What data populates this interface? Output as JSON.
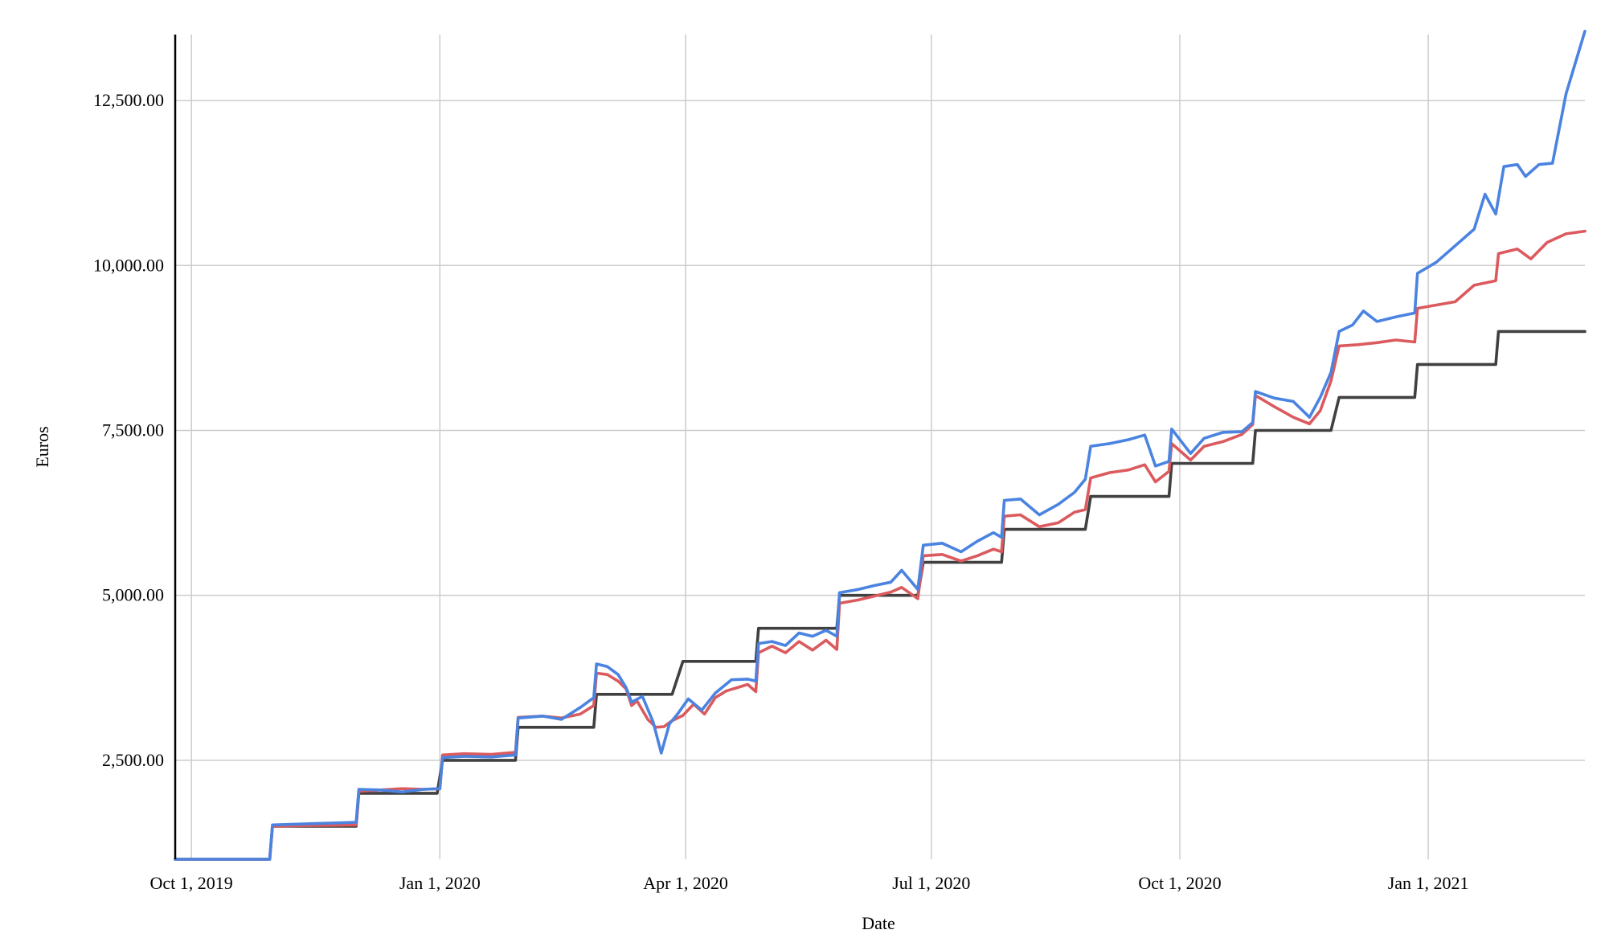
{
  "chart_data": {
    "type": "line",
    "title": "",
    "xlabel": "Date",
    "ylabel": "Euros",
    "xlim": [
      "2019-09-25",
      "2021-02-28"
    ],
    "ylim": [
      1000,
      13500
    ],
    "y_ticks": [
      {
        "value": 2500,
        "label": "2,500.00"
      },
      {
        "value": 5000,
        "label": "5,000.00"
      },
      {
        "value": 7500,
        "label": "7,500.00"
      },
      {
        "value": 10000,
        "label": "10,000.00"
      },
      {
        "value": 12500,
        "label": "12,500.00"
      }
    ],
    "x_ticks": [
      {
        "date": "2019-10-01",
        "label": "Oct 1, 2019"
      },
      {
        "date": "2020-01-01",
        "label": "Jan 1, 2020"
      },
      {
        "date": "2020-04-01",
        "label": "Apr 1, 2020"
      },
      {
        "date": "2020-07-01",
        "label": "Jul 1, 2020"
      },
      {
        "date": "2020-10-01",
        "label": "Oct 1, 2020"
      },
      {
        "date": "2021-01-01",
        "label": "Jan 1, 2021"
      }
    ],
    "grid": true,
    "legend": "none",
    "series": [
      {
        "color": "#404040",
        "points": [
          [
            "2019-09-25",
            1000
          ],
          [
            "2019-10-30",
            1000
          ],
          [
            "2019-10-31",
            1500
          ],
          [
            "2019-12-01",
            1500
          ],
          [
            "2019-12-02",
            2000
          ],
          [
            "2019-12-31",
            2000
          ],
          [
            "2020-01-02",
            2500
          ],
          [
            "2020-01-29",
            2500
          ],
          [
            "2020-01-30",
            3000
          ],
          [
            "2020-02-27",
            3000
          ],
          [
            "2020-02-28",
            3500
          ],
          [
            "2020-03-27",
            3500
          ],
          [
            "2020-03-31",
            4000
          ],
          [
            "2020-04-27",
            4000
          ],
          [
            "2020-04-28",
            4500
          ],
          [
            "2020-05-27",
            4500
          ],
          [
            "2020-05-28",
            5000
          ],
          [
            "2020-06-26",
            5000
          ],
          [
            "2020-06-28",
            5500
          ],
          [
            "2020-07-27",
            5500
          ],
          [
            "2020-07-28",
            6000
          ],
          [
            "2020-08-27",
            6000
          ],
          [
            "2020-08-29",
            6500
          ],
          [
            "2020-09-27",
            6500
          ],
          [
            "2020-09-28",
            7000
          ],
          [
            "2020-10-28",
            7000
          ],
          [
            "2020-10-29",
            7500
          ],
          [
            "2020-11-26",
            7500
          ],
          [
            "2020-11-29",
            8000
          ],
          [
            "2020-12-27",
            8000
          ],
          [
            "2020-12-28",
            8500
          ],
          [
            "2021-01-26",
            8500
          ],
          [
            "2021-01-27",
            9000
          ],
          [
            "2021-02-28",
            9000
          ]
        ]
      },
      {
        "color": "#db5a5e",
        "points": [
          [
            "2019-09-25",
            1000
          ],
          [
            "2019-10-30",
            1000
          ],
          [
            "2019-10-31",
            1500
          ],
          [
            "2019-11-15",
            1510
          ],
          [
            "2019-12-01",
            1520
          ],
          [
            "2019-12-02",
            2030
          ],
          [
            "2019-12-10",
            2050
          ],
          [
            "2019-12-18",
            2070
          ],
          [
            "2019-12-26",
            2060
          ],
          [
            "2020-01-01",
            2070
          ],
          [
            "2020-01-02",
            2580
          ],
          [
            "2020-01-10",
            2600
          ],
          [
            "2020-01-20",
            2590
          ],
          [
            "2020-01-29",
            2620
          ],
          [
            "2020-01-30",
            3150
          ],
          [
            "2020-02-08",
            3170
          ],
          [
            "2020-02-15",
            3140
          ],
          [
            "2020-02-22",
            3200
          ],
          [
            "2020-02-27",
            3330
          ],
          [
            "2020-02-28",
            3820
          ],
          [
            "2020-03-03",
            3800
          ],
          [
            "2020-03-07",
            3700
          ],
          [
            "2020-03-10",
            3580
          ],
          [
            "2020-03-12",
            3330
          ],
          [
            "2020-03-14",
            3400
          ],
          [
            "2020-03-18",
            3120
          ],
          [
            "2020-03-21",
            3000
          ],
          [
            "2020-03-24",
            3010
          ],
          [
            "2020-03-27",
            3100
          ],
          [
            "2020-03-31",
            3180
          ],
          [
            "2020-04-04",
            3350
          ],
          [
            "2020-04-08",
            3200
          ],
          [
            "2020-04-12",
            3450
          ],
          [
            "2020-04-16",
            3550
          ],
          [
            "2020-04-20",
            3600
          ],
          [
            "2020-04-24",
            3650
          ],
          [
            "2020-04-27",
            3540
          ],
          [
            "2020-04-28",
            4130
          ],
          [
            "2020-05-03",
            4230
          ],
          [
            "2020-05-08",
            4130
          ],
          [
            "2020-05-13",
            4300
          ],
          [
            "2020-05-18",
            4170
          ],
          [
            "2020-05-23",
            4320
          ],
          [
            "2020-05-27",
            4180
          ],
          [
            "2020-05-28",
            4880
          ],
          [
            "2020-06-04",
            4930
          ],
          [
            "2020-06-10",
            4990
          ],
          [
            "2020-06-16",
            5050
          ],
          [
            "2020-06-20",
            5120
          ],
          [
            "2020-06-26",
            4950
          ],
          [
            "2020-06-28",
            5600
          ],
          [
            "2020-07-05",
            5620
          ],
          [
            "2020-07-12",
            5520
          ],
          [
            "2020-07-18",
            5600
          ],
          [
            "2020-07-24",
            5700
          ],
          [
            "2020-07-27",
            5660
          ],
          [
            "2020-07-28",
            6200
          ],
          [
            "2020-08-03",
            6220
          ],
          [
            "2020-08-10",
            6040
          ],
          [
            "2020-08-17",
            6100
          ],
          [
            "2020-08-23",
            6260
          ],
          [
            "2020-08-27",
            6300
          ],
          [
            "2020-08-29",
            6780
          ],
          [
            "2020-09-05",
            6860
          ],
          [
            "2020-09-12",
            6900
          ],
          [
            "2020-09-18",
            6980
          ],
          [
            "2020-09-22",
            6720
          ],
          [
            "2020-09-27",
            6880
          ],
          [
            "2020-09-28",
            7300
          ],
          [
            "2020-10-05",
            7050
          ],
          [
            "2020-10-10",
            7260
          ],
          [
            "2020-10-17",
            7330
          ],
          [
            "2020-10-24",
            7440
          ],
          [
            "2020-10-28",
            7590
          ],
          [
            "2020-10-29",
            8030
          ],
          [
            "2020-11-05",
            7860
          ],
          [
            "2020-11-12",
            7700
          ],
          [
            "2020-11-18",
            7600
          ],
          [
            "2020-11-22",
            7800
          ],
          [
            "2020-11-26",
            8250
          ],
          [
            "2020-11-29",
            8780
          ],
          [
            "2020-12-06",
            8800
          ],
          [
            "2020-12-13",
            8830
          ],
          [
            "2020-12-20",
            8870
          ],
          [
            "2020-12-27",
            8840
          ],
          [
            "2020-12-28",
            9350
          ],
          [
            "2021-01-04",
            9400
          ],
          [
            "2021-01-11",
            9450
          ],
          [
            "2021-01-18",
            9700
          ],
          [
            "2021-01-26",
            9770
          ],
          [
            "2021-01-27",
            10180
          ],
          [
            "2021-02-03",
            10250
          ],
          [
            "2021-02-08",
            10100
          ],
          [
            "2021-02-14",
            10350
          ],
          [
            "2021-02-21",
            10480
          ],
          [
            "2021-02-28",
            10520
          ]
        ]
      },
      {
        "color": "#4a83e0",
        "points": [
          [
            "2019-09-25",
            1000
          ],
          [
            "2019-10-30",
            1000
          ],
          [
            "2019-10-31",
            1520
          ],
          [
            "2019-11-15",
            1540
          ],
          [
            "2019-12-01",
            1560
          ],
          [
            "2019-12-02",
            2060
          ],
          [
            "2019-12-10",
            2050
          ],
          [
            "2019-12-18",
            2020
          ],
          [
            "2019-12-26",
            2060
          ],
          [
            "2020-01-01",
            2070
          ],
          [
            "2020-01-02",
            2540
          ],
          [
            "2020-01-10",
            2560
          ],
          [
            "2020-01-20",
            2550
          ],
          [
            "2020-01-29",
            2580
          ],
          [
            "2020-01-30",
            3140
          ],
          [
            "2020-02-08",
            3170
          ],
          [
            "2020-02-15",
            3120
          ],
          [
            "2020-02-22",
            3300
          ],
          [
            "2020-02-27",
            3450
          ],
          [
            "2020-02-28",
            3960
          ],
          [
            "2020-03-03",
            3920
          ],
          [
            "2020-03-07",
            3800
          ],
          [
            "2020-03-10",
            3600
          ],
          [
            "2020-03-12",
            3380
          ],
          [
            "2020-03-16",
            3470
          ],
          [
            "2020-03-20",
            3080
          ],
          [
            "2020-03-23",
            2610
          ],
          [
            "2020-03-26",
            3050
          ],
          [
            "2020-03-29",
            3200
          ],
          [
            "2020-04-02",
            3430
          ],
          [
            "2020-04-07",
            3260
          ],
          [
            "2020-04-12",
            3520
          ],
          [
            "2020-04-18",
            3720
          ],
          [
            "2020-04-24",
            3730
          ],
          [
            "2020-04-27",
            3700
          ],
          [
            "2020-04-28",
            4270
          ],
          [
            "2020-05-03",
            4300
          ],
          [
            "2020-05-08",
            4240
          ],
          [
            "2020-05-13",
            4430
          ],
          [
            "2020-05-18",
            4380
          ],
          [
            "2020-05-23",
            4470
          ],
          [
            "2020-05-27",
            4380
          ],
          [
            "2020-05-28",
            5040
          ],
          [
            "2020-06-04",
            5090
          ],
          [
            "2020-06-10",
            5150
          ],
          [
            "2020-06-16",
            5200
          ],
          [
            "2020-06-20",
            5380
          ],
          [
            "2020-06-26",
            5090
          ],
          [
            "2020-06-28",
            5760
          ],
          [
            "2020-07-05",
            5790
          ],
          [
            "2020-07-12",
            5660
          ],
          [
            "2020-07-18",
            5820
          ],
          [
            "2020-07-24",
            5950
          ],
          [
            "2020-07-27",
            5880
          ],
          [
            "2020-07-28",
            6440
          ],
          [
            "2020-08-03",
            6460
          ],
          [
            "2020-08-10",
            6220
          ],
          [
            "2020-08-17",
            6380
          ],
          [
            "2020-08-23",
            6560
          ],
          [
            "2020-08-27",
            6760
          ],
          [
            "2020-08-29",
            7260
          ],
          [
            "2020-09-05",
            7300
          ],
          [
            "2020-09-12",
            7360
          ],
          [
            "2020-09-18",
            7430
          ],
          [
            "2020-09-22",
            6960
          ],
          [
            "2020-09-27",
            7030
          ],
          [
            "2020-09-28",
            7520
          ],
          [
            "2020-10-05",
            7150
          ],
          [
            "2020-10-10",
            7380
          ],
          [
            "2020-10-17",
            7470
          ],
          [
            "2020-10-24",
            7480
          ],
          [
            "2020-10-28",
            7620
          ],
          [
            "2020-10-29",
            8090
          ],
          [
            "2020-11-05",
            7990
          ],
          [
            "2020-11-12",
            7940
          ],
          [
            "2020-11-18",
            7700
          ],
          [
            "2020-11-22",
            8000
          ],
          [
            "2020-11-26",
            8380
          ],
          [
            "2020-11-29",
            9000
          ],
          [
            "2020-12-04",
            9100
          ],
          [
            "2020-12-08",
            9310
          ],
          [
            "2020-12-13",
            9150
          ],
          [
            "2020-12-20",
            9220
          ],
          [
            "2020-12-27",
            9280
          ],
          [
            "2020-12-28",
            9880
          ],
          [
            "2021-01-04",
            10050
          ],
          [
            "2021-01-11",
            10300
          ],
          [
            "2021-01-18",
            10550
          ],
          [
            "2021-01-22",
            11080
          ],
          [
            "2021-01-26",
            10780
          ],
          [
            "2021-01-29",
            11500
          ],
          [
            "2021-02-03",
            11530
          ],
          [
            "2021-02-06",
            11350
          ],
          [
            "2021-02-11",
            11530
          ],
          [
            "2021-02-16",
            11550
          ],
          [
            "2021-02-21",
            12600
          ],
          [
            "2021-02-28",
            13550
          ]
        ]
      }
    ]
  }
}
